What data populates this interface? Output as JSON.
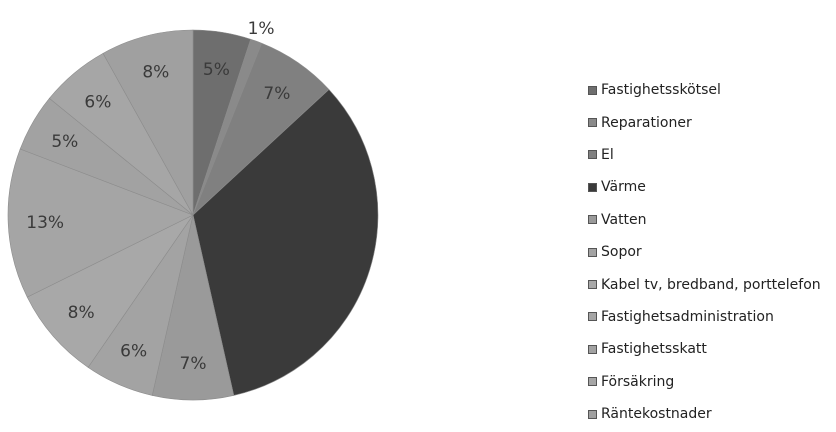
{
  "chart_data": {
    "type": "pie",
    "title": "",
    "slices": [
      {
        "name": "Fastighetsskötsel",
        "value": 5,
        "label": "5%",
        "color": "#6e6e6e"
      },
      {
        "name": "Reparationer",
        "value": 1,
        "label": "1%",
        "color": "#8a8a8a"
      },
      {
        "name": "El",
        "value": 7,
        "label": "7%",
        "color": "#808080"
      },
      {
        "name": "Värme",
        "value": 33,
        "label": "",
        "color": "#3a3a3a"
      },
      {
        "name": "Vatten",
        "value": 7,
        "label": "7%",
        "color": "#9a9a9a"
      },
      {
        "name": "Sopor",
        "value": 6,
        "label": "6%",
        "color": "#a3a3a3"
      },
      {
        "name": "Kabel tv, bredband, porttelefon",
        "value": 8,
        "label": "8%",
        "color": "#a8a8a8"
      },
      {
        "name": "Fastighetsadministration",
        "value": 13,
        "label": "13%",
        "color": "#a5a5a5"
      },
      {
        "name": "Fastighetsskatt",
        "value": 5,
        "label": "5%",
        "color": "#a2a2a2"
      },
      {
        "name": "Försäkring",
        "value": 6,
        "label": "6%",
        "color": "#a6a6a6"
      },
      {
        "name": "Räntekostnader",
        "value": 8,
        "label": "8%",
        "color": "#a0a0a0"
      }
    ],
    "legend_position": "right"
  }
}
